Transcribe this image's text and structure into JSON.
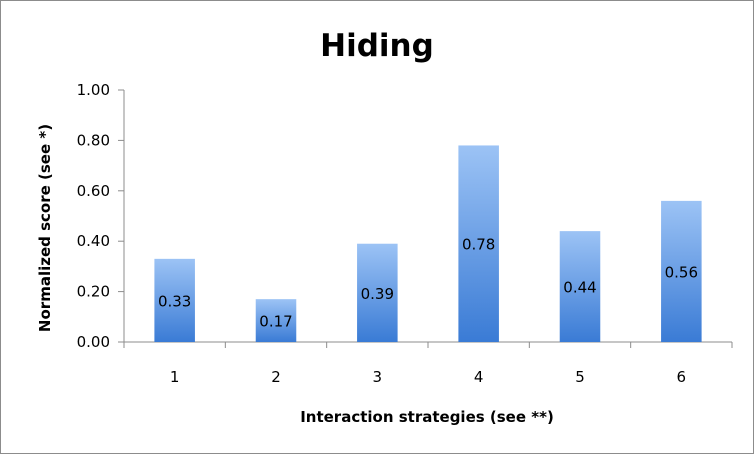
{
  "chart_data": {
    "type": "bar",
    "title": "Hiding",
    "xlabel": "Interaction strategies (see **)",
    "ylabel": "Normalized score (see *)",
    "categories": [
      "1",
      "2",
      "3",
      "4",
      "5",
      "6"
    ],
    "values": [
      0.33,
      0.17,
      0.39,
      0.78,
      0.44,
      0.56
    ],
    "data_labels": [
      "0.33",
      "0.17",
      "0.39",
      "0.78",
      "0.44",
      "0.56"
    ],
    "ylim": [
      0,
      1.0
    ],
    "yticks": [
      "0.00",
      "0.20",
      "0.40",
      "0.60",
      "0.80",
      "1.00"
    ],
    "grid": false,
    "legend": "none",
    "colors": {
      "bar_top": "#9cc3f5",
      "bar_bottom": "#3a7bd5",
      "axis": "#8c8c8c",
      "frame": "#8c8c8c"
    }
  }
}
